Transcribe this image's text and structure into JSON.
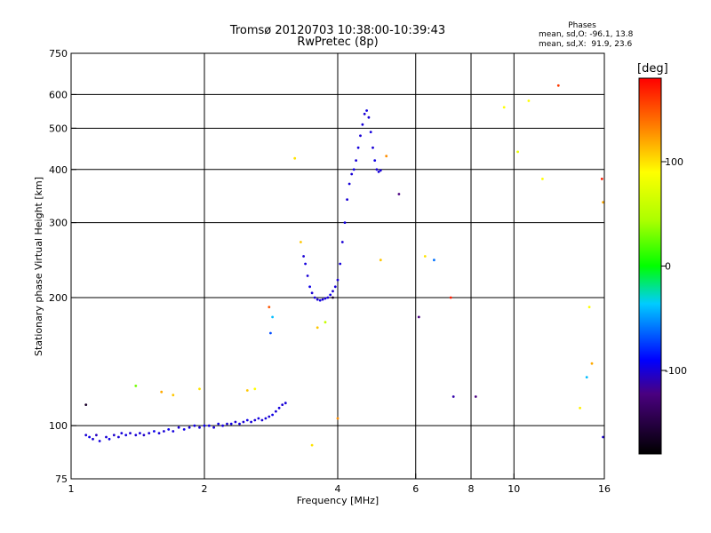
{
  "header": {
    "title_line1": "Tromsø 20120703 10:38:00-10:39:43",
    "title_line2": "RwPretec (8p)",
    "phases_label": "Phases",
    "stat_o": "mean, sd,O: -96.1, 13.8",
    "stat_x": "mean, sd,X:  91.9, 23.6"
  },
  "colorbar": {
    "unit": "[deg]",
    "range": [
      -180,
      180
    ],
    "ticks": [
      100,
      0,
      -100
    ],
    "tick_labels": [
      "100",
      "0",
      "-100"
    ]
  },
  "chart_data": {
    "type": "scatter",
    "xlabel": "Frequency [MHz]",
    "ylabel": "Stationary phase Virtual Height [km]",
    "xscale": "log",
    "yscale": "log",
    "xlim": [
      1,
      16
    ],
    "ylim": [
      75,
      750
    ],
    "xticks": [
      1,
      2,
      4,
      6,
      8,
      10,
      16
    ],
    "xtick_labels": [
      "1",
      "2",
      "4",
      "6",
      "8",
      "10",
      "16"
    ],
    "yticks": [
      75,
      100,
      200,
      300,
      400,
      500,
      600,
      750
    ],
    "ytick_labels": [
      "75",
      "100",
      "200",
      "300",
      "400",
      "500",
      "600",
      "750"
    ],
    "grid": true,
    "series": [
      {
        "values": [
          {
            "f": 1.08,
            "h": 95,
            "p": -100
          },
          {
            "f": 1.1,
            "h": 94,
            "p": -95
          },
          {
            "f": 1.12,
            "h": 93,
            "p": -100
          },
          {
            "f": 1.14,
            "h": 95,
            "p": -105
          },
          {
            "f": 1.16,
            "h": 92,
            "p": -98
          },
          {
            "f": 1.2,
            "h": 94,
            "p": -100
          },
          {
            "f": 1.22,
            "h": 93,
            "p": -96
          },
          {
            "f": 1.25,
            "h": 95,
            "p": -102
          },
          {
            "f": 1.28,
            "h": 94,
            "p": -100
          },
          {
            "f": 1.3,
            "h": 96,
            "p": -99
          },
          {
            "f": 1.33,
            "h": 95,
            "p": -97
          },
          {
            "f": 1.36,
            "h": 96,
            "p": -101
          },
          {
            "f": 1.4,
            "h": 95,
            "p": -100
          },
          {
            "f": 1.43,
            "h": 96,
            "p": -98
          },
          {
            "f": 1.46,
            "h": 95,
            "p": -103
          },
          {
            "f": 1.5,
            "h": 96,
            "p": -100
          },
          {
            "f": 1.54,
            "h": 97,
            "p": -95
          },
          {
            "f": 1.58,
            "h": 96,
            "p": -99
          },
          {
            "f": 1.62,
            "h": 97,
            "p": -100
          },
          {
            "f": 1.66,
            "h": 98,
            "p": -94
          },
          {
            "f": 1.7,
            "h": 97,
            "p": -98
          },
          {
            "f": 1.75,
            "h": 99,
            "p": -100
          },
          {
            "f": 1.8,
            "h": 98,
            "p": -96
          },
          {
            "f": 1.85,
            "h": 99,
            "p": -100
          },
          {
            "f": 1.9,
            "h": 100,
            "p": -97
          },
          {
            "f": 1.95,
            "h": 99,
            "p": -100
          },
          {
            "f": 2.0,
            "h": 100,
            "p": -95
          },
          {
            "f": 2.05,
            "h": 100,
            "p": -98
          },
          {
            "f": 2.1,
            "h": 99,
            "p": -100
          },
          {
            "f": 2.15,
            "h": 101,
            "p": -96
          },
          {
            "f": 2.2,
            "h": 100,
            "p": -99
          },
          {
            "f": 2.25,
            "h": 101,
            "p": -100
          },
          {
            "f": 2.3,
            "h": 101,
            "p": -97
          },
          {
            "f": 2.35,
            "h": 102,
            "p": -100
          },
          {
            "f": 2.4,
            "h": 101,
            "p": -98
          },
          {
            "f": 2.45,
            "h": 102,
            "p": -100
          },
          {
            "f": 2.5,
            "h": 103,
            "p": -96
          },
          {
            "f": 2.55,
            "h": 102,
            "p": -99
          },
          {
            "f": 2.6,
            "h": 103,
            "p": -100
          },
          {
            "f": 2.65,
            "h": 104,
            "p": -97
          },
          {
            "f": 2.7,
            "h": 103,
            "p": -100
          },
          {
            "f": 2.75,
            "h": 104,
            "p": -98
          },
          {
            "f": 2.8,
            "h": 105,
            "p": -100
          },
          {
            "f": 2.85,
            "h": 106,
            "p": -96
          },
          {
            "f": 2.9,
            "h": 108,
            "p": -100
          },
          {
            "f": 2.95,
            "h": 110,
            "p": -98
          },
          {
            "f": 3.0,
            "h": 112,
            "p": -100
          },
          {
            "f": 3.05,
            "h": 113,
            "p": -99
          },
          {
            "f": 3.35,
            "h": 250,
            "p": -100
          },
          {
            "f": 3.38,
            "h": 240,
            "p": -98
          },
          {
            "f": 3.42,
            "h": 225,
            "p": -100
          },
          {
            "f": 3.46,
            "h": 212,
            "p": -96
          },
          {
            "f": 3.5,
            "h": 205,
            "p": -100
          },
          {
            "f": 3.55,
            "h": 200,
            "p": -99
          },
          {
            "f": 3.6,
            "h": 198,
            "p": -100
          },
          {
            "f": 3.65,
            "h": 197,
            "p": -97
          },
          {
            "f": 3.7,
            "h": 198,
            "p": -100
          },
          {
            "f": 3.75,
            "h": 199,
            "p": -98
          },
          {
            "f": 3.8,
            "h": 200,
            "p": -100
          },
          {
            "f": 3.85,
            "h": 203,
            "p": -96
          },
          {
            "f": 3.9,
            "h": 207,
            "p": -100
          },
          {
            "f": 3.95,
            "h": 212,
            "p": -99
          },
          {
            "f": 4.0,
            "h": 220,
            "p": -100
          },
          {
            "f": 4.05,
            "h": 240,
            "p": -98
          },
          {
            "f": 4.1,
            "h": 270,
            "p": -100
          },
          {
            "f": 4.15,
            "h": 300,
            "p": -97
          },
          {
            "f": 4.2,
            "h": 340,
            "p": -100
          },
          {
            "f": 4.25,
            "h": 370,
            "p": -99
          },
          {
            "f": 4.3,
            "h": 390,
            "p": -100
          },
          {
            "f": 4.35,
            "h": 400,
            "p": -96
          },
          {
            "f": 4.4,
            "h": 420,
            "p": -100
          },
          {
            "f": 4.45,
            "h": 450,
            "p": -98
          },
          {
            "f": 4.5,
            "h": 480,
            "p": -100
          },
          {
            "f": 4.55,
            "h": 510,
            "p": -99
          },
          {
            "f": 4.6,
            "h": 540,
            "p": -100
          },
          {
            "f": 4.65,
            "h": 550,
            "p": -97
          },
          {
            "f": 4.7,
            "h": 530,
            "p": -100
          },
          {
            "f": 4.75,
            "h": 490,
            "p": -98
          },
          {
            "f": 4.8,
            "h": 450,
            "p": -100
          },
          {
            "f": 4.85,
            "h": 420,
            "p": -96
          },
          {
            "f": 4.9,
            "h": 400,
            "p": -100
          },
          {
            "f": 4.95,
            "h": 395,
            "p": -99
          },
          {
            "f": 5.0,
            "h": 398,
            "p": -100
          }
        ]
      },
      {
        "values": [
          {
            "f": 1.08,
            "h": 112,
            "p": -160
          },
          {
            "f": 1.4,
            "h": 124,
            "p": 30
          },
          {
            "f": 1.6,
            "h": 120,
            "p": 120
          },
          {
            "f": 1.7,
            "h": 118,
            "p": 110
          },
          {
            "f": 1.95,
            "h": 122,
            "p": 100
          },
          {
            "f": 2.5,
            "h": 121,
            "p": 110
          },
          {
            "f": 2.6,
            "h": 122,
            "p": 90
          },
          {
            "f": 2.8,
            "h": 190,
            "p": 150
          },
          {
            "f": 2.85,
            "h": 180,
            "p": -40
          },
          {
            "f": 2.82,
            "h": 165,
            "p": -70
          },
          {
            "f": 3.2,
            "h": 425,
            "p": 100
          },
          {
            "f": 3.3,
            "h": 270,
            "p": 110
          },
          {
            "f": 3.5,
            "h": 90,
            "p": 100
          },
          {
            "f": 3.6,
            "h": 170,
            "p": 110
          },
          {
            "f": 3.75,
            "h": 175,
            "p": 60
          },
          {
            "f": 3.9,
            "h": 200,
            "p": -160
          },
          {
            "f": 4.0,
            "h": 104,
            "p": 130
          },
          {
            "f": 5.0,
            "h": 245,
            "p": 110
          },
          {
            "f": 5.15,
            "h": 430,
            "p": 130
          },
          {
            "f": 5.5,
            "h": 350,
            "p": -120
          },
          {
            "f": 6.1,
            "h": 180,
            "p": -120
          },
          {
            "f": 6.3,
            "h": 250,
            "p": 100
          },
          {
            "f": 6.6,
            "h": 245,
            "p": -60
          },
          {
            "f": 7.2,
            "h": 200,
            "p": 170
          },
          {
            "f": 7.3,
            "h": 117,
            "p": -110
          },
          {
            "f": 8.2,
            "h": 117,
            "p": -120
          },
          {
            "f": 9.5,
            "h": 560,
            "p": 90
          },
          {
            "f": 10.2,
            "h": 440,
            "p": 80
          },
          {
            "f": 10.8,
            "h": 580,
            "p": 90
          },
          {
            "f": 11.6,
            "h": 380,
            "p": 90
          },
          {
            "f": 12.6,
            "h": 630,
            "p": 160
          },
          {
            "f": 14.1,
            "h": 110,
            "p": 95
          },
          {
            "f": 14.6,
            "h": 130,
            "p": -40
          },
          {
            "f": 14.8,
            "h": 190,
            "p": 90
          },
          {
            "f": 15.0,
            "h": 140,
            "p": 120
          },
          {
            "f": 15.8,
            "h": 380,
            "p": 170
          },
          {
            "f": 15.9,
            "h": 335,
            "p": 120
          },
          {
            "f": 15.9,
            "h": 94,
            "p": -100
          }
        ]
      }
    ]
  }
}
